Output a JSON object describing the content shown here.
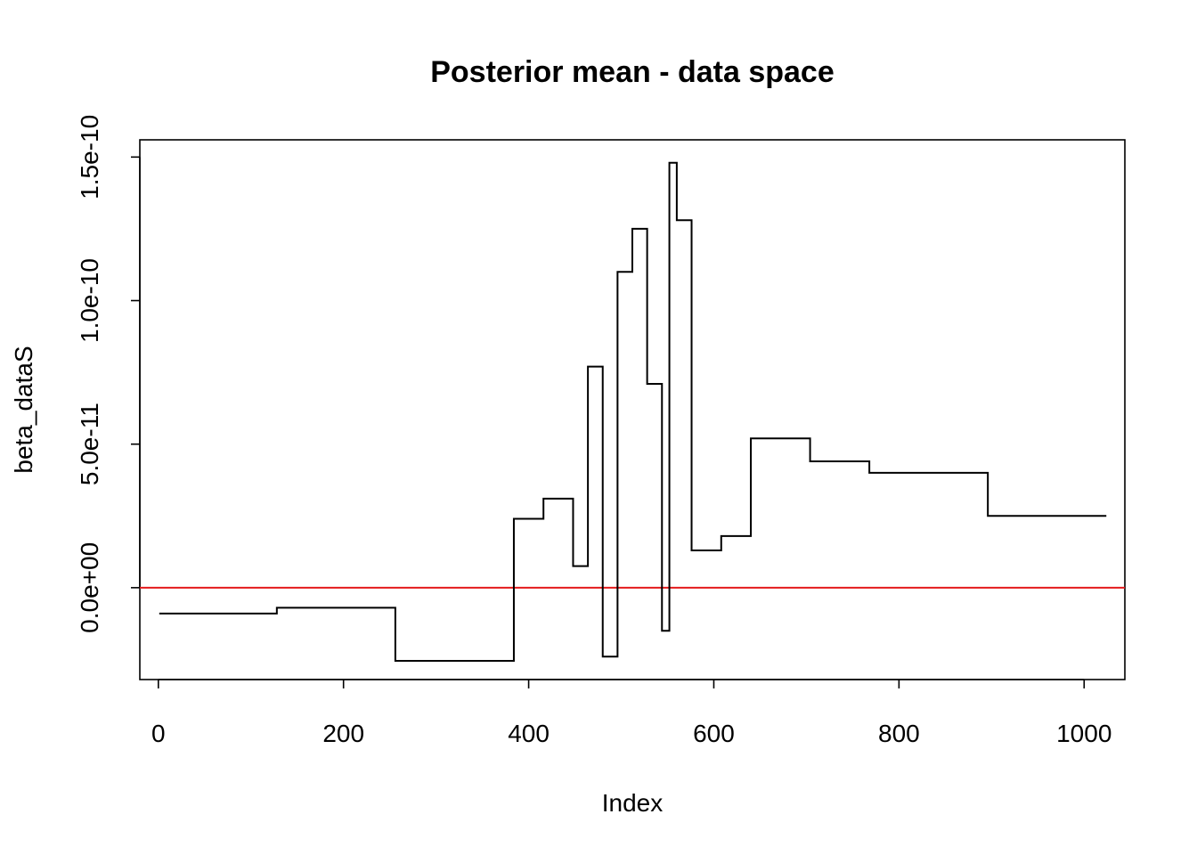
{
  "chart_data": {
    "type": "line",
    "title": "Posterior mean - data space",
    "xlabel": "Index",
    "ylabel": "beta_dataS",
    "xlim": [
      -20,
      1044
    ],
    "ylim": [
      -3.2e-11,
      1.56e-10
    ],
    "x_ticks": [
      {
        "value": 0,
        "label": "0"
      },
      {
        "value": 200,
        "label": "200"
      },
      {
        "value": 400,
        "label": "400"
      },
      {
        "value": 600,
        "label": "600"
      },
      {
        "value": 800,
        "label": "800"
      },
      {
        "value": 1000,
        "label": "1000"
      }
    ],
    "y_ticks": [
      {
        "value": 0,
        "label": "0.0e+00"
      },
      {
        "value": 5e-11,
        "label": "5.0e-11"
      },
      {
        "value": 1e-10,
        "label": "1.0e-10"
      },
      {
        "value": 1.5e-10,
        "label": "1.5e-10"
      }
    ],
    "grid": false,
    "series": [
      {
        "style": "step",
        "color": "#000000",
        "segments": [
          {
            "x_start": 1,
            "x_end": 128,
            "y": -9e-12
          },
          {
            "x_start": 128,
            "x_end": 256,
            "y": -7e-12
          },
          {
            "x_start": 256,
            "x_end": 384,
            "y": -2.55e-11
          },
          {
            "x_start": 384,
            "x_end": 416,
            "y": 2.4e-11
          },
          {
            "x_start": 416,
            "x_end": 448,
            "y": 3.1e-11
          },
          {
            "x_start": 448,
            "x_end": 464,
            "y": 7.5e-12
          },
          {
            "x_start": 464,
            "x_end": 480,
            "y": 7.7e-11
          },
          {
            "x_start": 480,
            "x_end": 496,
            "y": -2.4e-11
          },
          {
            "x_start": 496,
            "x_end": 512,
            "y": 1.1e-10
          },
          {
            "x_start": 512,
            "x_end": 528,
            "y": 1.25e-10
          },
          {
            "x_start": 528,
            "x_end": 544,
            "y": 7.1e-11
          },
          {
            "x_start": 544,
            "x_end": 552,
            "y": -1.5e-11
          },
          {
            "x_start": 552,
            "x_end": 560,
            "y": 1.48e-10
          },
          {
            "x_start": 560,
            "x_end": 576,
            "y": 1.28e-10
          },
          {
            "x_start": 576,
            "x_end": 608,
            "y": 1.3e-11
          },
          {
            "x_start": 608,
            "x_end": 640,
            "y": 1.8e-11
          },
          {
            "x_start": 640,
            "x_end": 704,
            "y": 5.2e-11
          },
          {
            "x_start": 704,
            "x_end": 768,
            "y": 4.4e-11
          },
          {
            "x_start": 768,
            "x_end": 896,
            "y": 4e-11
          },
          {
            "x_start": 896,
            "x_end": 1024,
            "y": 2.5e-11
          }
        ]
      }
    ],
    "hline": {
      "y": 0,
      "color": "#e41a1c"
    }
  }
}
